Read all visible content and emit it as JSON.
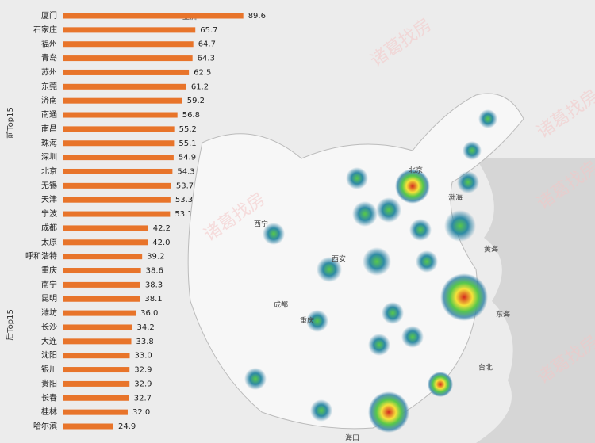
{
  "chart_data": {
    "type": "bar",
    "orientation": "horizontal",
    "categories": [
      "厦门",
      "石家庄",
      "福州",
      "青岛",
      "苏州",
      "东莞",
      "济南",
      "南通",
      "南昌",
      "珠海",
      "深圳",
      "北京",
      "无锡",
      "天津",
      "宁波",
      "成都",
      "太原",
      "呼和浩特",
      "重庆",
      "南宁",
      "昆明",
      "潍坊",
      "长沙",
      "大连",
      "沈阳",
      "银川",
      "贵阳",
      "长春",
      "桂林",
      "哈尔滨"
    ],
    "values": [
      89.6,
      65.7,
      64.7,
      64.3,
      62.5,
      61.2,
      59.2,
      56.8,
      55.2,
      55.1,
      54.9,
      54.3,
      53.7,
      53.3,
      53.1,
      42.2,
      42.0,
      39.2,
      38.6,
      38.3,
      38.1,
      36.0,
      34.2,
      33.8,
      33.0,
      32.9,
      32.9,
      32.7,
      32.0,
      24.9
    ],
    "value_labels": [
      "89.6",
      "65.7",
      "64.7",
      "64.3",
      "62.5",
      "61.2",
      "59.2",
      "56.8",
      "55.2",
      "55.1",
      "54.9",
      "54.3",
      "53.7",
      "53.3",
      "53.1",
      "42.2",
      "42.0",
      "39.2",
      "38.6",
      "38.3",
      "38.1",
      "36.0",
      "34.2",
      "33.8",
      "33.0",
      "32.9",
      "32.9",
      "32.7",
      "32.0",
      "24.9"
    ],
    "color": "#e8742a",
    "xlim": [
      0,
      100
    ],
    "annotations": [
      "前Top15",
      "后Top15"
    ],
    "map_labels": [
      "亚洲",
      "北京",
      "渤海",
      "黄海",
      "东海",
      "西宁",
      "西安",
      "成都",
      "重庆",
      "台北",
      "海口"
    ],
    "watermark": "诸葛找房"
  }
}
